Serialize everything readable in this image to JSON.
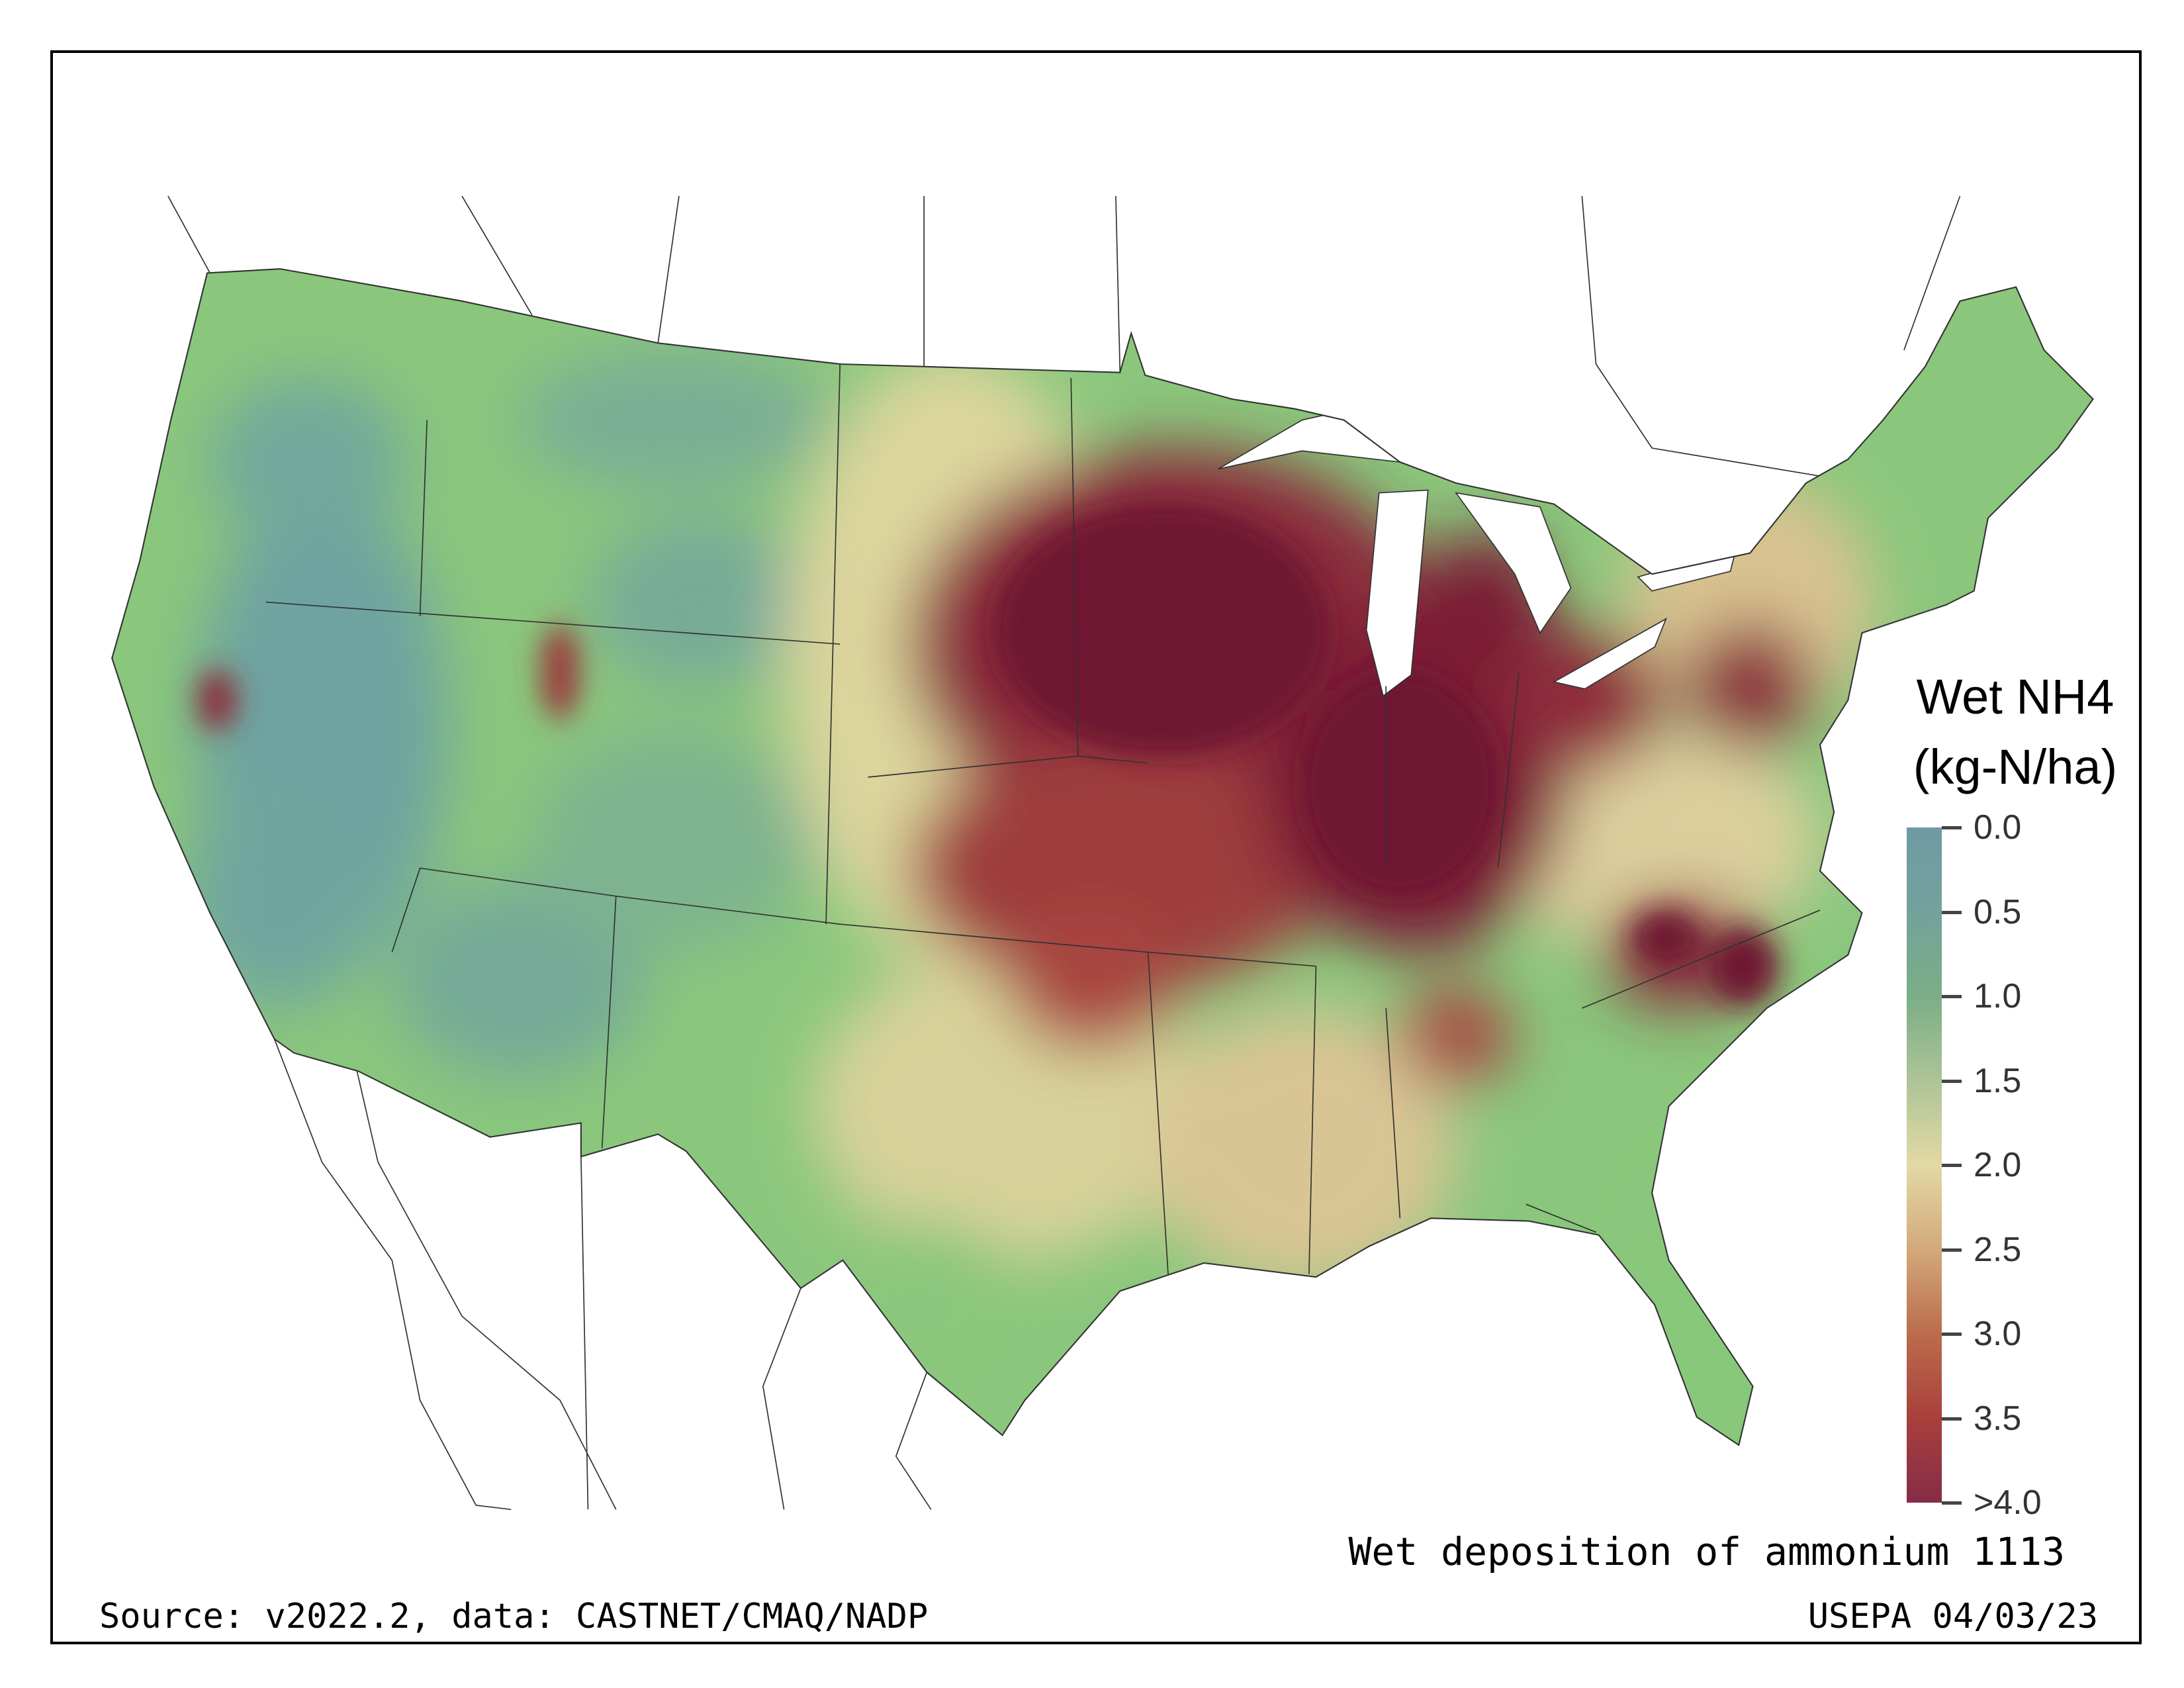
{
  "legend": {
    "title_line1": "Wet NH4",
    "title_line2": "(kg-N/ha)",
    "ticks": [
      "0.0",
      "0.5",
      "1.0",
      "1.5",
      "2.0",
      "2.5",
      "3.0",
      "3.5",
      ">4.0"
    ],
    "colors": [
      "#6f9aa5",
      "#73a29c",
      "#7bae86",
      "#adc497",
      "#e3d9a5",
      "#d3a97a",
      "#bb6c4c",
      "#a8403c",
      "#862c47"
    ]
  },
  "caption": "Wet deposition of ammonium 1113",
  "source": "Source: v2022.2, data: CASTNET/CMAQ/NADP",
  "agency_date": "USEPA 04/03/23"
}
